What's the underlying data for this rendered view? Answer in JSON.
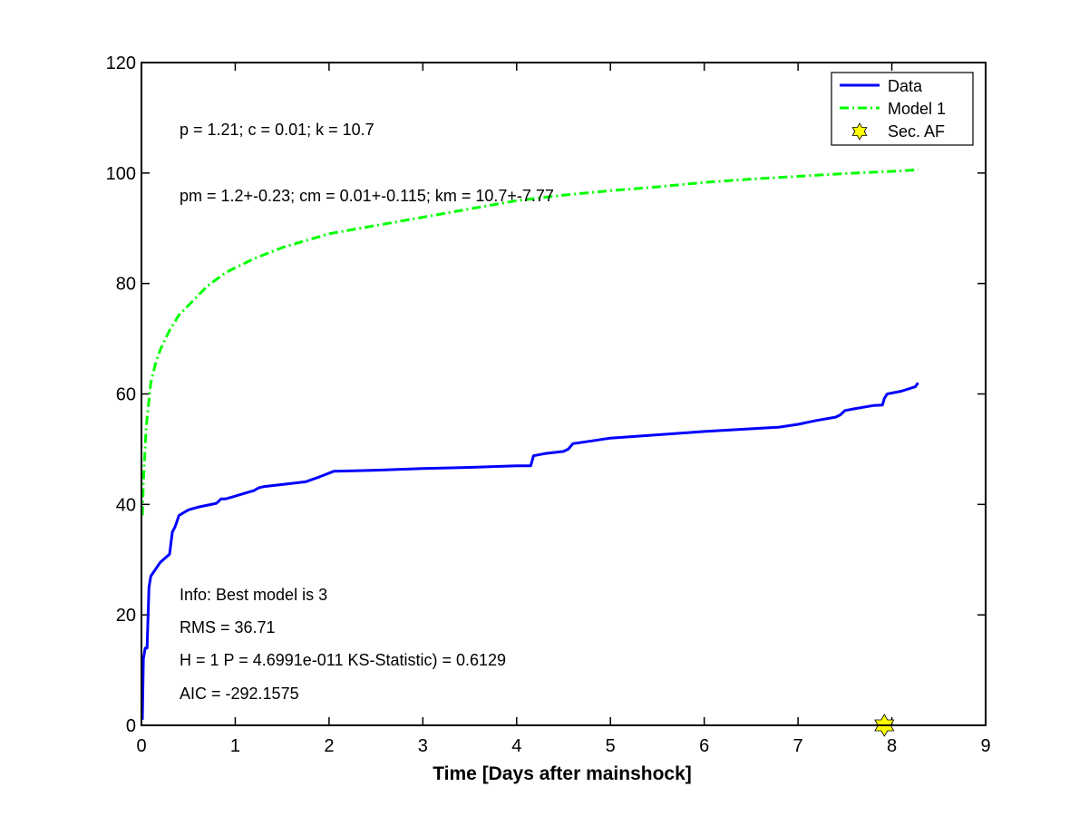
{
  "chart_data": {
    "type": "line",
    "xlabel": "Time [Days after mainshock]",
    "ylabel": "",
    "xlim": [
      0,
      9
    ],
    "ylim": [
      0,
      120
    ],
    "xticks": [
      "0",
      "1",
      "2",
      "3",
      "4",
      "5",
      "6",
      "7",
      "8",
      "9"
    ],
    "yticks": [
      "0",
      "20",
      "40",
      "60",
      "80",
      "100",
      "120"
    ],
    "grid": false,
    "legend_position": "top-right",
    "series": [
      {
        "name": "Data",
        "style": "solid",
        "color": "#0000ff",
        "x": [
          0.01,
          0.02,
          0.04,
          0.06,
          0.08,
          0.1,
          0.2,
          0.3,
          0.33,
          0.36,
          0.4,
          0.5,
          0.6,
          0.8,
          0.85,
          0.9,
          1.0,
          1.1,
          1.2,
          1.25,
          1.3,
          1.5,
          1.75,
          1.9,
          2.05,
          2.5,
          3.0,
          3.5,
          4.0,
          4.15,
          4.18,
          4.3,
          4.5,
          4.55,
          4.6,
          4.8,
          5.0,
          6.0,
          6.8,
          7.0,
          7.2,
          7.4,
          7.45,
          7.5,
          7.6,
          7.8,
          7.9,
          7.92,
          7.95,
          8.1,
          8.25,
          8.28
        ],
        "y": [
          1,
          12,
          14,
          14,
          25,
          27,
          29.5,
          31,
          35,
          36,
          38,
          39,
          39.5,
          40.2,
          41,
          41,
          41.5,
          42,
          42.5,
          43,
          43.2,
          43.6,
          44.1,
          45,
          46,
          46.2,
          46.5,
          46.7,
          47,
          47,
          48.8,
          49.2,
          49.6,
          50,
          51,
          51.5,
          52,
          53.2,
          54,
          54.5,
          55.2,
          55.8,
          56.2,
          57,
          57.3,
          57.9,
          58,
          59.2,
          60,
          60.5,
          61.3,
          62
        ]
      },
      {
        "name": "Model 1",
        "style": "dash-dot",
        "color": "#00ff00",
        "x": [
          0.01,
          0.02,
          0.05,
          0.1,
          0.15,
          0.2,
          0.3,
          0.4,
          0.5,
          0.7,
          0.9,
          1.2,
          1.5,
          2.0,
          2.5,
          3.0,
          3.5,
          4.0,
          4.5,
          5.0,
          5.5,
          6.0,
          6.5,
          7.0,
          7.5,
          8.0,
          8.28
        ],
        "y": [
          38,
          44,
          54,
          62,
          65.5,
          68,
          71.5,
          74.3,
          76,
          79.5,
          82,
          84.5,
          86.5,
          89,
          90.5,
          92,
          93.5,
          95,
          96,
          96.8,
          97.5,
          98.3,
          98.9,
          99.4,
          99.9,
          100.3,
          100.6
        ]
      }
    ],
    "markers": [
      {
        "name": "Sec. AF",
        "shape": "hexagram",
        "color": "#ffff00",
        "x": 7.92,
        "y": 0
      }
    ],
    "annotations": {
      "params": "p = 1.21; c = 0.01; k = 10.7",
      "params_m": "pm = 1.2+-0.23; cm = 0.01+-0.115; km = 10.7+-7.77",
      "info": "Info: Best model is 3",
      "rms": "RMS = 36.71",
      "ks": "H = 1 P = 4.6991e-011 KS-Statistic) = 0.6129",
      "aic": "AIC = -292.1575"
    }
  }
}
